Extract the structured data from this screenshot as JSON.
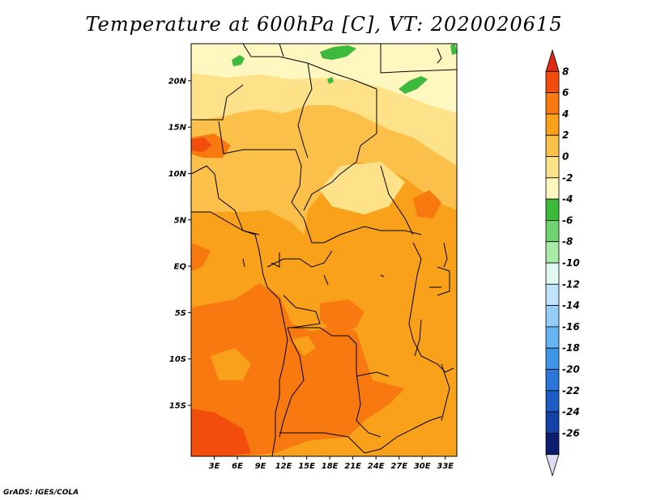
{
  "title": "Temperature at 600hPa [C], VT: 2020020615",
  "credit": "GrADS: IGES/COLA",
  "map": {
    "lon_range": [
      0,
      34.5
    ],
    "lat_range": [
      -20.5,
      24
    ],
    "x_ticks": [
      {
        "value": 3,
        "label": "3E"
      },
      {
        "value": 6,
        "label": "6E"
      },
      {
        "value": 9,
        "label": "9E"
      },
      {
        "value": 12,
        "label": "12E"
      },
      {
        "value": 15,
        "label": "15E"
      },
      {
        "value": 18,
        "label": "18E"
      },
      {
        "value": 21,
        "label": "21E"
      },
      {
        "value": 24,
        "label": "24E"
      },
      {
        "value": 27,
        "label": "27E"
      },
      {
        "value": 30,
        "label": "30E"
      },
      {
        "value": 33,
        "label": "33E"
      }
    ],
    "y_ticks": [
      {
        "value": 20,
        "label": "20N"
      },
      {
        "value": 15,
        "label": "15N"
      },
      {
        "value": 10,
        "label": "10N"
      },
      {
        "value": 5,
        "label": "5N"
      },
      {
        "value": 0,
        "label": "EQ"
      },
      {
        "value": -5,
        "label": "5S"
      },
      {
        "value": -10,
        "label": "10S"
      },
      {
        "value": -15,
        "label": "15S"
      }
    ]
  },
  "colorbar": {
    "levels": [
      "8",
      "6",
      "4",
      "2",
      "0",
      "-2",
      "-4",
      "-6",
      "-8",
      "-10",
      "-12",
      "-14",
      "-16",
      "-18",
      "-20",
      "-22",
      "-24",
      "-26"
    ],
    "colors": [
      "#dd2a12",
      "#f24d0c",
      "#f7790f",
      "#f9a11a",
      "#fbc04a",
      "#fde28a",
      "#fff7c0",
      "#3cba3c",
      "#6fd46f",
      "#a8eaa8",
      "#e1f7f2",
      "#bfe3fa",
      "#94cdf7",
      "#68b3f1",
      "#3f95e8",
      "#2d77da",
      "#1c5cc4",
      "#1342a8",
      "#0c1f6e",
      "#dcdcf4"
    ]
  }
}
